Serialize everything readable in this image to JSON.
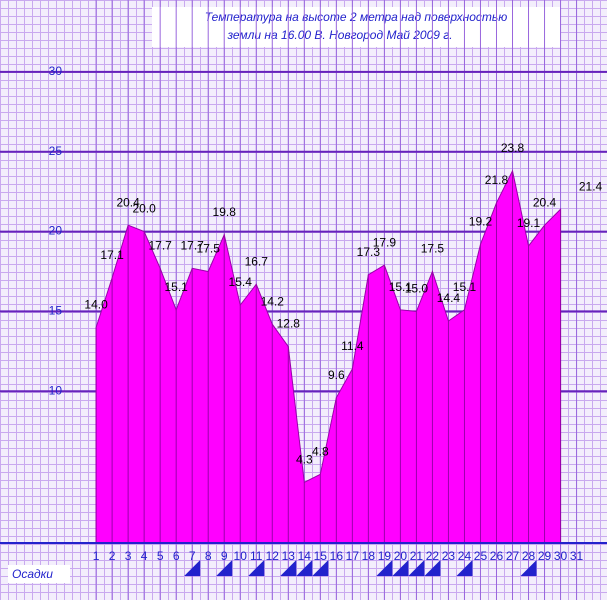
{
  "chart_data": {
    "type": "area",
    "title": [
      "Температура на высоте 2 метра над поверхностью",
      "земли на 16.00    В. Новгород   Май  2009 г."
    ],
    "x": [
      1,
      2,
      3,
      4,
      5,
      6,
      7,
      8,
      9,
      10,
      11,
      12,
      13,
      14,
      15,
      16,
      17,
      18,
      19,
      20,
      21,
      22,
      23,
      24,
      25,
      26,
      27,
      28,
      29,
      30,
      31
    ],
    "values": [
      14.0,
      17.1,
      20.4,
      20.0,
      17.7,
      15.1,
      17.7,
      17.5,
      19.8,
      15.4,
      16.7,
      14.2,
      12.8,
      4.3,
      4.8,
      9.6,
      11.4,
      17.3,
      17.9,
      15.1,
      15.0,
      17.5,
      14.4,
      15.1,
      19.2,
      21.8,
      23.8,
      19.1,
      20.4,
      21.4,
      null
    ],
    "value_labels": [
      "14.0",
      "17.1",
      "20.4",
      "20.0",
      "17.7",
      "15.1",
      "17.7",
      "17.5",
      "19.8",
      "15.4",
      "16.7",
      "14.2",
      "12.8",
      "4.3",
      "4.8",
      "9.6",
      "11.4",
      "17.3",
      "17.9",
      "15.1",
      "15.0",
      "17.5",
      "14.4",
      "15.1",
      "19.2",
      "21.8",
      "23.8",
      "19.1",
      "20.4",
      "21.4",
      null
    ],
    "color": "#ff00ff",
    "xlim": [
      -5,
      32.9
    ],
    "ylim": [
      0.5,
      34.5
    ],
    "yticks": [
      10,
      15,
      20,
      25,
      30
    ],
    "precipitation_label": "Осадки",
    "precipitation_days": [
      7,
      9,
      11,
      13,
      14,
      15,
      19,
      20,
      21,
      22,
      24,
      28
    ]
  }
}
